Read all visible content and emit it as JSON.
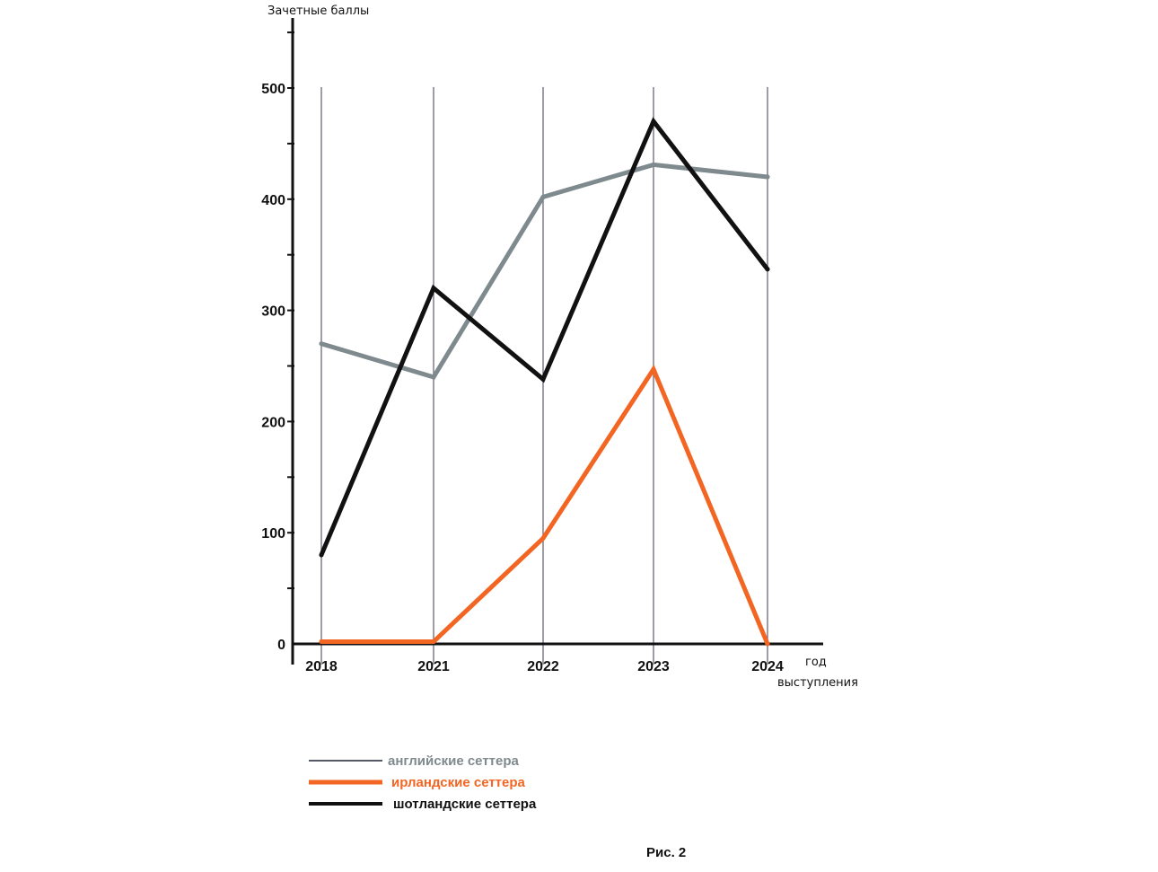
{
  "chart_data": {
    "type": "line",
    "ylabel": "Зачетные баллы",
    "xlabel_line1": "год",
    "xlabel_line2": "выступления",
    "categories": [
      "2018",
      "2021",
      "2022",
      "2023",
      "2024"
    ],
    "ylim": [
      0,
      500
    ],
    "yticks": [
      "0",
      "100",
      "200",
      "300",
      "400",
      "500"
    ],
    "grid": "vertical lines at categories",
    "legend_position": "bottom-left",
    "series": [
      {
        "name": "английские сеттера",
        "color": "#7f8a8e",
        "values": [
          270,
          240,
          402,
          431,
          420
        ]
      },
      {
        "name": "ирландские сеттера",
        "color": "#f26522",
        "values": [
          2,
          2,
          95,
          247,
          0
        ]
      },
      {
        "name": "шотландские сеттера",
        "color": "#111111",
        "values": [
          80,
          320,
          238,
          470,
          337
        ]
      }
    ],
    "caption": "Рис. 2"
  }
}
